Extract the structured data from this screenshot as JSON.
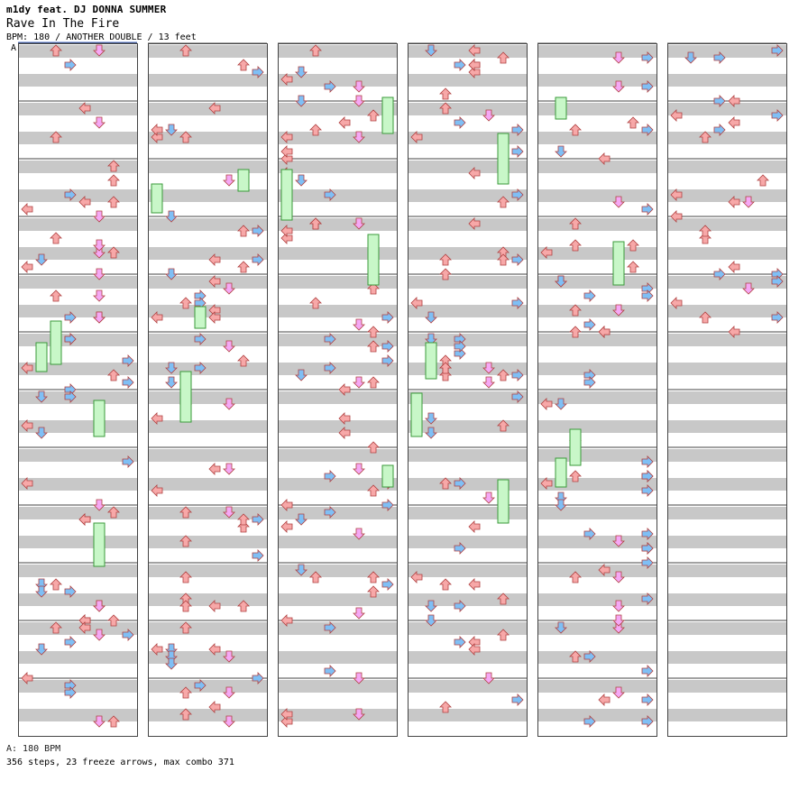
{
  "header": {
    "artist": "m1dy feat. DJ DONNA SUMMER",
    "song": "Rave In The Fire",
    "info": "BPM: 180 / ANOTHER DOUBLE / 13 feet"
  },
  "marker_label": "A",
  "footer": {
    "bpm_line": "A: 180 BPM",
    "stats_line": "356 steps, 23 freeze arrows, max combo 371"
  },
  "colors": {
    "stripe": "#c8c8c8",
    "border": "#444444",
    "red_arrow": "#f7a8a8",
    "blue_arrow": "#7fbff5",
    "pink_arrow": "#f5a8f5",
    "freeze": "#c8f7c8"
  },
  "chart_data": {
    "type": "step_chart",
    "columns": 6,
    "measures_per_column": 12,
    "total_steps": 356,
    "freeze_arrows": 23,
    "max_combo": 371
  }
}
